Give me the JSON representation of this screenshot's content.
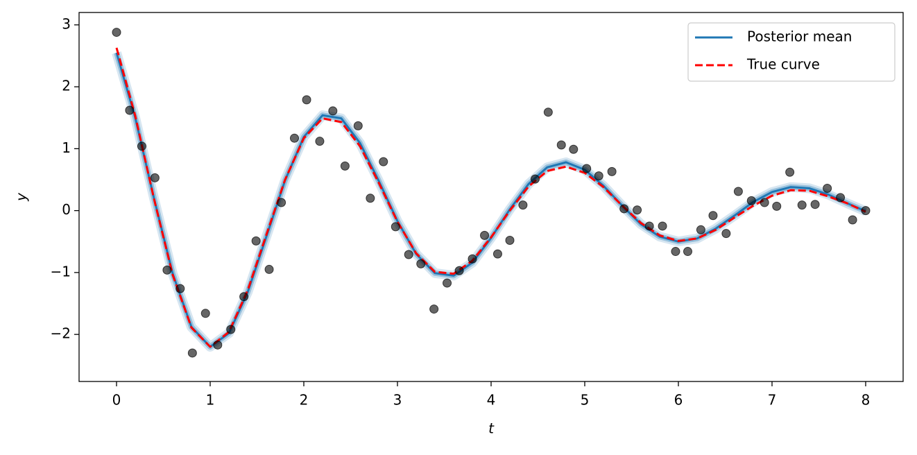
{
  "chart_data": {
    "type": "line",
    "x_label": "t",
    "y_label": "y",
    "xlim": [
      -0.4,
      8.4
    ],
    "ylim": [
      -2.76,
      3.2
    ],
    "xticks": [
      0,
      1,
      2,
      3,
      4,
      5,
      6,
      7,
      8
    ],
    "yticks": [
      {
        "value": -2,
        "label": "−2"
      },
      {
        "value": -1,
        "label": "−1"
      },
      0,
      1,
      2,
      3
    ],
    "legend_position": "upper right",
    "x": [
      0,
      0.2,
      0.4,
      0.6,
      0.8,
      1.0,
      1.2,
      1.4,
      1.6,
      1.8,
      2.0,
      2.2,
      2.4,
      2.6,
      2.8,
      3.0,
      3.2,
      3.4,
      3.6,
      3.8,
      4.0,
      4.2,
      4.4,
      4.6,
      4.8,
      5.0,
      5.2,
      5.4,
      5.6,
      5.8,
      6.0,
      6.2,
      6.4,
      6.6,
      6.8,
      7.0,
      7.2,
      7.4,
      7.6,
      7.8,
      8.0
    ],
    "series": [
      {
        "name": "Posterior mean",
        "color": "#1f77b4",
        "style": "solid",
        "values": [
          2.55,
          1.5,
          0.2,
          -1.02,
          -1.88,
          -2.2,
          -1.98,
          -1.32,
          -0.42,
          0.49,
          1.19,
          1.54,
          1.49,
          1.09,
          0.48,
          -0.17,
          -0.7,
          -1.01,
          -1.05,
          -0.84,
          -0.44,
          0.02,
          0.43,
          0.7,
          0.78,
          0.66,
          0.4,
          0.08,
          -0.22,
          -0.42,
          -0.5,
          -0.45,
          -0.29,
          -0.08,
          0.14,
          0.3,
          0.38,
          0.36,
          0.26,
          0.12,
          -0.01
        ]
      },
      {
        "name": "True curve",
        "color": "#ff0000",
        "style": "dashed",
        "values": [
          2.63,
          1.53,
          0.19,
          -1.04,
          -1.89,
          -2.2,
          -1.96,
          -1.29,
          -0.39,
          0.5,
          1.17,
          1.49,
          1.43,
          1.04,
          0.45,
          -0.18,
          -0.69,
          -0.99,
          -1.02,
          -0.81,
          -0.43,
          0.0,
          0.39,
          0.64,
          0.71,
          0.61,
          0.38,
          0.08,
          -0.2,
          -0.4,
          -0.49,
          -0.45,
          -0.31,
          -0.11,
          0.08,
          0.24,
          0.33,
          0.32,
          0.23,
          0.12,
          -0.02
        ]
      }
    ],
    "points": {
      "color": "#000000",
      "x": [
        0,
        0.14,
        0.27,
        0.41,
        0.54,
        0.68,
        0.81,
        0.95,
        1.08,
        1.22,
        1.36,
        1.49,
        1.63,
        1.76,
        1.9,
        2.03,
        2.17,
        2.31,
        2.44,
        2.58,
        2.71,
        2.85,
        2.98,
        3.12,
        3.25,
        3.39,
        3.53,
        3.66,
        3.8,
        3.93,
        4.07,
        4.2,
        4.34,
        4.47,
        4.61,
        4.75,
        4.88,
        5.02,
        5.15,
        5.29,
        5.42,
        5.56,
        5.69,
        5.83,
        5.97,
        6.1,
        6.24,
        6.37,
        6.51,
        6.64,
        6.78,
        6.92,
        7.05,
        7.19,
        7.32,
        7.46,
        7.59,
        7.73,
        7.86,
        8.0
      ],
      "y": [
        2.88,
        1.62,
        1.04,
        0.53,
        -0.96,
        -1.26,
        -2.3,
        -1.66,
        -2.17,
        -1.92,
        -1.39,
        -0.49,
        -0.95,
        0.13,
        1.17,
        1.79,
        1.12,
        1.61,
        0.72,
        1.37,
        0.2,
        0.79,
        -0.26,
        -0.71,
        -0.86,
        -1.59,
        -1.17,
        -0.97,
        -0.78,
        -0.4,
        -0.7,
        -0.48,
        0.09,
        0.51,
        1.59,
        1.06,
        0.99,
        0.68,
        0.56,
        0.63,
        0.03,
        0.01,
        -0.25,
        -0.25,
        -0.66,
        -0.66,
        -0.31,
        -0.08,
        -0.37,
        0.31,
        0.16,
        0.13,
        0.07,
        0.62,
        0.09,
        0.1,
        0.36,
        0.21,
        -0.15,
        0.0
      ]
    }
  }
}
